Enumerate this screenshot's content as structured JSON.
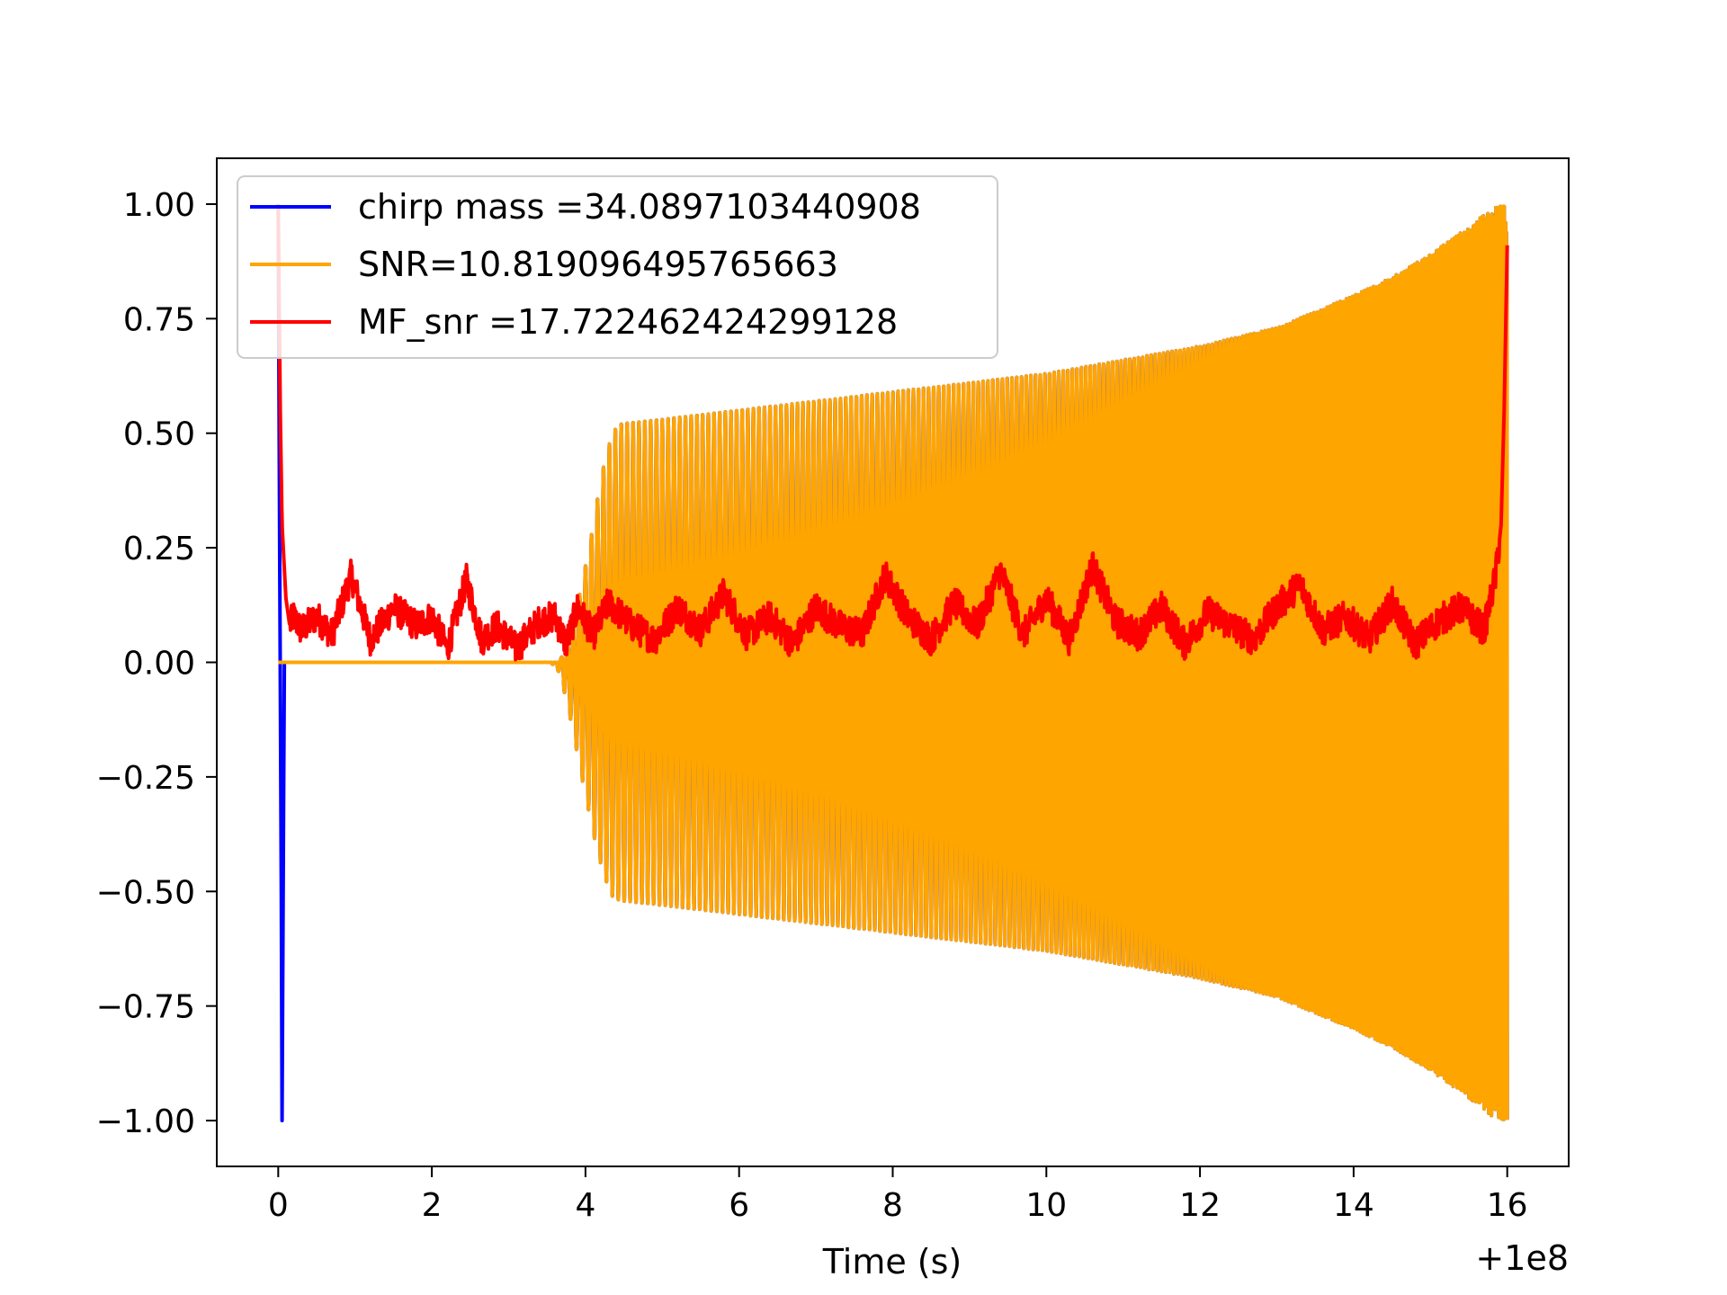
{
  "chart_data": {
    "type": "line",
    "title": "",
    "xlabel": "Time (s)",
    "ylabel": "",
    "x_offset_label": "+1e8",
    "xlim": [
      -0.8,
      16.8
    ],
    "ylim": [
      -1.1,
      1.1
    ],
    "xticks": [
      0,
      2,
      4,
      6,
      8,
      10,
      12,
      14,
      16
    ],
    "xtick_labels": [
      "0",
      "2",
      "4",
      "6",
      "8",
      "10",
      "12",
      "14",
      "16"
    ],
    "yticks": [
      1.0,
      0.75,
      0.5,
      0.25,
      0.0,
      -0.25,
      -0.5,
      -0.75,
      -1.0
    ],
    "ytick_labels": [
      "1.00",
      "0.75",
      "0.50",
      "0.25",
      "0.00",
      "−0.25",
      "−0.50",
      "−0.75",
      "−1.00"
    ],
    "grid": false,
    "legend_position": "upper-left",
    "series": [
      {
        "name": "chirp mass =34.0897103440908",
        "color": "#0000ff",
        "description": "normalized chirp waveform (blue), nearly hidden under orange",
        "envelope": {
          "t": [
            0.0,
            0.03,
            0.05,
            0.08,
            3.55,
            3.65,
            3.75,
            3.85,
            3.95,
            4.05,
            4.15,
            4.25,
            4.35,
            4.45,
            5.0,
            6.0,
            7.0,
            8.0,
            9.0,
            10.0,
            11.0,
            12.0,
            13.0,
            14.0,
            14.5,
            15.0,
            15.5,
            15.8,
            16.0
          ],
          "upper": [
            1.0,
            0.4,
            0.0,
            0.0,
            0.0,
            0.0,
            0.03,
            0.09,
            0.17,
            0.25,
            0.35,
            0.44,
            0.5,
            0.52,
            0.53,
            0.55,
            0.57,
            0.59,
            0.61,
            0.63,
            0.66,
            0.69,
            0.73,
            0.8,
            0.84,
            0.89,
            0.95,
            0.99,
            1.0
          ],
          "lower": [
            -0.02,
            -0.5,
            -1.0,
            0.0,
            0.0,
            -0.02,
            -0.08,
            -0.16,
            -0.25,
            -0.33,
            -0.41,
            -0.47,
            -0.51,
            -0.52,
            -0.53,
            -0.55,
            -0.57,
            -0.59,
            -0.61,
            -0.63,
            -0.66,
            -0.69,
            -0.73,
            -0.8,
            -0.84,
            -0.89,
            -0.95,
            -0.99,
            -1.0
          ]
        }
      },
      {
        "name": "SNR=10.819096495765663",
        "color": "#ffa500",
        "description": "chirp waveform (orange) — flat at 0 until ~3.6 s, then oscillates with a growing envelope up to ±1.0 at 16 s",
        "envelope": {
          "t": [
            0.0,
            3.55,
            3.65,
            3.75,
            3.85,
            3.95,
            4.05,
            4.15,
            4.25,
            4.35,
            4.45,
            5.0,
            6.0,
            7.0,
            8.0,
            9.0,
            10.0,
            11.0,
            12.0,
            13.0,
            14.0,
            14.5,
            15.0,
            15.5,
            15.8,
            16.0
          ],
          "upper": [
            0.0,
            0.0,
            0.0,
            0.03,
            0.09,
            0.17,
            0.25,
            0.35,
            0.44,
            0.5,
            0.52,
            0.53,
            0.55,
            0.57,
            0.59,
            0.61,
            0.63,
            0.66,
            0.69,
            0.73,
            0.8,
            0.84,
            0.89,
            0.95,
            0.99,
            1.0
          ],
          "lower": [
            0.0,
            0.0,
            -0.02,
            -0.08,
            -0.16,
            -0.25,
            -0.33,
            -0.41,
            -0.47,
            -0.51,
            -0.52,
            -0.53,
            -0.55,
            -0.57,
            -0.59,
            -0.61,
            -0.63,
            -0.66,
            -0.69,
            -0.73,
            -0.8,
            -0.84,
            -0.89,
            -0.95,
            -0.99,
            -1.0
          ]
        }
      },
      {
        "name": "MF_snr =17.722462424299128",
        "color": "#ff0000",
        "description": "matched-filter SNR time series — spike at 0 s and at ~16 s, noisy 0–0.2 band in between",
        "points": {
          "t": [
            0.0,
            0.02,
            0.05,
            0.1,
            0.15,
            0.2,
            0.3,
            0.5,
            0.7,
            0.95,
            1.2,
            1.5,
            1.8,
            2.0,
            2.2,
            2.45,
            2.65,
            2.85,
            3.1,
            3.4,
            3.6,
            3.75,
            3.9,
            4.1,
            4.3,
            4.6,
            4.9,
            5.2,
            5.5,
            5.8,
            6.1,
            6.4,
            6.7,
            7.0,
            7.3,
            7.6,
            7.9,
            8.2,
            8.5,
            8.8,
            9.1,
            9.4,
            9.7,
            10.0,
            10.3,
            10.6,
            10.9,
            11.2,
            11.5,
            11.8,
            12.1,
            12.4,
            12.7,
            13.0,
            13.3,
            13.6,
            13.9,
            14.2,
            14.5,
            14.8,
            15.1,
            15.4,
            15.7,
            15.85,
            15.92,
            15.96,
            16.0
          ],
          "y": [
            1.0,
            0.62,
            0.3,
            0.14,
            0.08,
            0.1,
            0.07,
            0.1,
            0.06,
            0.19,
            0.05,
            0.12,
            0.08,
            0.1,
            0.03,
            0.18,
            0.05,
            0.08,
            0.03,
            0.09,
            0.1,
            0.04,
            0.12,
            0.06,
            0.13,
            0.08,
            0.05,
            0.12,
            0.07,
            0.15,
            0.06,
            0.1,
            0.04,
            0.12,
            0.08,
            0.06,
            0.19,
            0.1,
            0.05,
            0.13,
            0.08,
            0.2,
            0.06,
            0.14,
            0.05,
            0.21,
            0.09,
            0.06,
            0.12,
            0.04,
            0.11,
            0.08,
            0.05,
            0.12,
            0.17,
            0.07,
            0.1,
            0.05,
            0.13,
            0.04,
            0.09,
            0.12,
            0.07,
            0.19,
            0.3,
            0.55,
            0.91
          ]
        }
      }
    ]
  }
}
